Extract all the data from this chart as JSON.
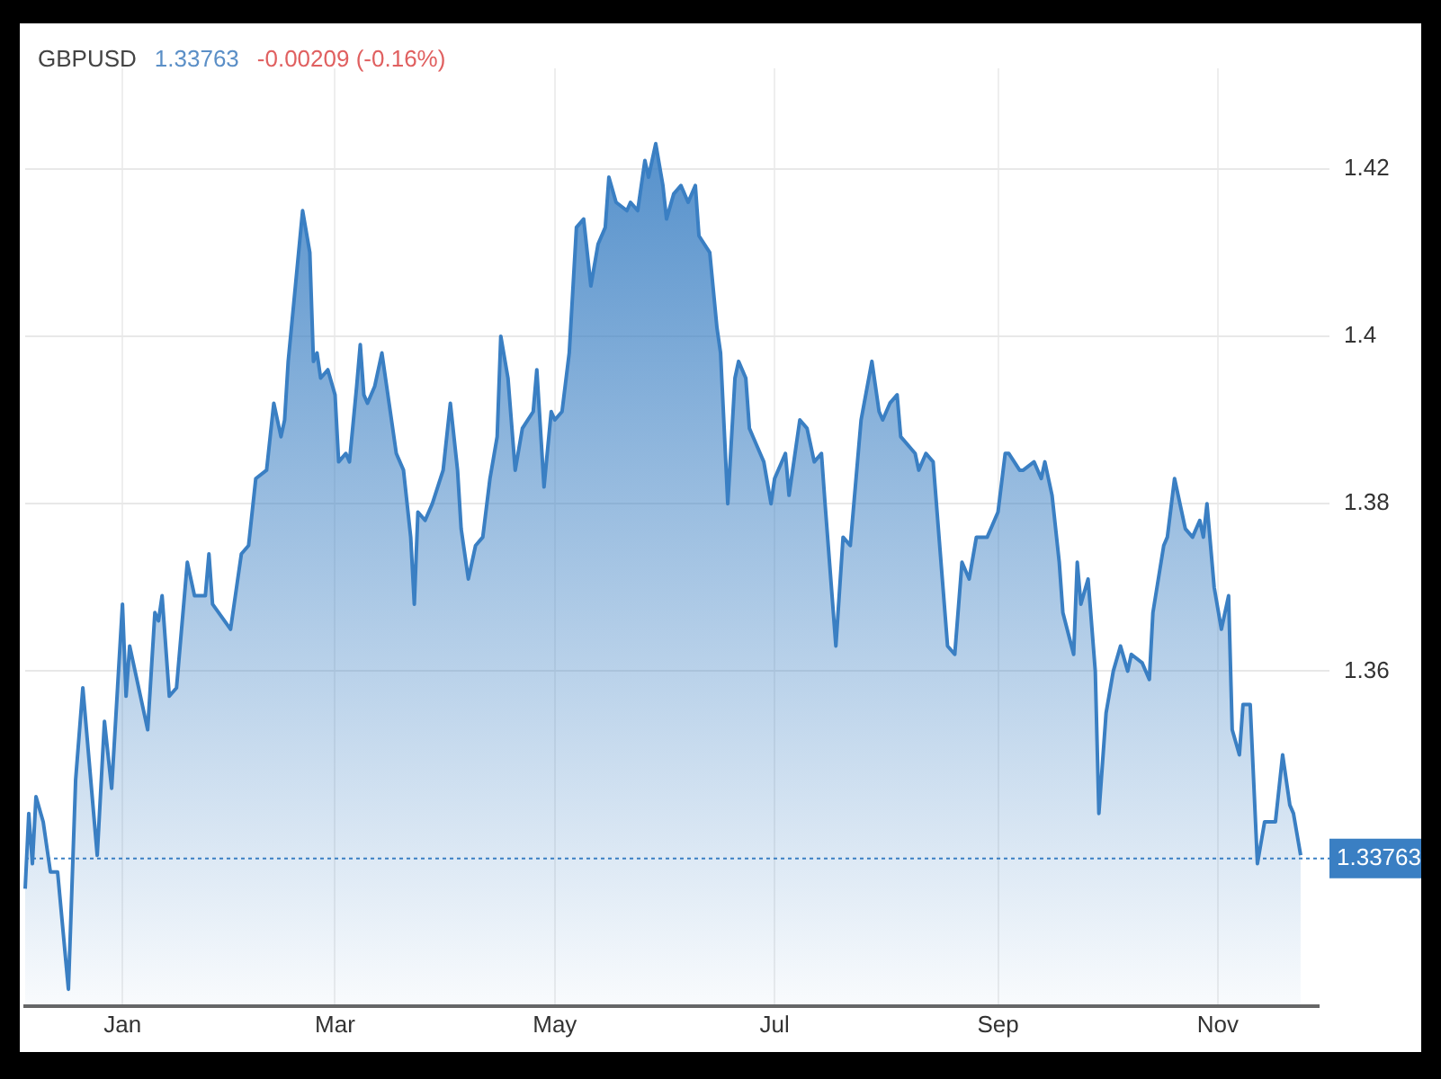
{
  "chart_data": {
    "type": "area",
    "title": "GBPUSD",
    "subtitle": "1.33763",
    "annotations": [
      "-0.00209 (-0.16%)"
    ],
    "categories": [
      null,
      null,
      null,
      null,
      null,
      null,
      null,
      null,
      null,
      null,
      null,
      null,
      null,
      null,
      null,
      null,
      null,
      null,
      null,
      null,
      null,
      null,
      null,
      null,
      null,
      null,
      null,
      "Jan",
      null,
      null,
      null,
      null,
      null,
      null,
      null,
      null,
      null,
      null,
      null,
      null,
      null,
      null,
      null,
      null,
      null,
      null,
      null,
      null,
      null,
      null,
      null,
      null,
      null,
      null,
      null,
      null,
      null,
      null,
      null,
      null,
      null,
      null,
      null,
      null,
      null,
      null,
      null,
      null,
      null,
      null,
      null,
      null,
      null,
      null,
      null,
      null,
      null,
      null,
      null,
      null,
      null,
      null,
      null,
      null,
      null,
      null,
      "Mar",
      null,
      null,
      null,
      null,
      null,
      null,
      null,
      null,
      null,
      null,
      null,
      null,
      null,
      null,
      null,
      null,
      null,
      null,
      null,
      null,
      null,
      null,
      null,
      null,
      null,
      null,
      null,
      null,
      null,
      null,
      null,
      null,
      null,
      null,
      null,
      null,
      null,
      null,
      null,
      null,
      null,
      null,
      null,
      null,
      null,
      null,
      null,
      null,
      null,
      null,
      null,
      null,
      null,
      null,
      null,
      null,
      null,
      null,
      null,
      null,
      "May",
      null,
      null,
      null,
      null,
      null,
      null,
      null,
      null,
      null,
      null,
      null,
      null,
      null,
      null,
      null,
      null,
      null,
      null,
      null,
      null,
      null,
      null,
      null,
      null,
      null,
      null,
      null,
      null,
      null,
      null,
      null,
      null,
      null,
      null,
      null,
      null,
      null,
      null,
      null,
      null,
      null,
      null,
      null,
      null,
      null,
      null,
      null,
      null,
      null,
      null,
      null,
      null,
      null,
      null,
      null,
      null,
      null,
      null,
      null,
      null,
      "Jul",
      null,
      null,
      null,
      null,
      null,
      null,
      null,
      null,
      null,
      null,
      null,
      null,
      null,
      null,
      null,
      null,
      null,
      null,
      null,
      null,
      null,
      null,
      null,
      null,
      null,
      null,
      null,
      null,
      null,
      null,
      null,
      null,
      null,
      null,
      null,
      null,
      null,
      null,
      null,
      null,
      null,
      null,
      null,
      null,
      null,
      null,
      null,
      null,
      null,
      null,
      null,
      null,
      null,
      null,
      null,
      null,
      null,
      null,
      null,
      null,
      null,
      "Sep",
      null,
      null,
      null,
      null,
      null,
      null,
      null,
      null,
      null,
      null,
      null,
      null,
      null,
      null,
      null,
      null,
      null,
      null,
      null,
      null,
      null,
      null,
      null,
      null,
      null,
      null,
      null,
      null,
      null,
      null,
      null,
      null,
      null,
      null,
      null,
      null,
      null,
      null,
      null,
      null,
      null,
      null,
      null,
      null,
      null,
      null,
      null,
      null,
      null,
      null,
      null,
      null,
      null,
      null,
      null,
      null,
      null,
      null,
      null,
      null,
      "Nov",
      null,
      null,
      null,
      null,
      null,
      null,
      null,
      null,
      null,
      null,
      null,
      null,
      null,
      null,
      null,
      null,
      null,
      null,
      null,
      null,
      null,
      null,
      null,
      null,
      null,
      null,
      null,
      null
    ],
    "series": [
      {
        "color": "#3a7fc3",
        "values": [
          1.334,
          1.343,
          1.337,
          1.345,
          null,
          1.342,
          null,
          1.336,
          null,
          1.336,
          null,
          null,
          1.322,
          null,
          1.347,
          null,
          1.358,
          null,
          null,
          null,
          1.338,
          null,
          1.354,
          null,
          1.346,
          null,
          null,
          1.368,
          1.357,
          1.363,
          null,
          null,
          1.357,
          null,
          1.353,
          null,
          1.367,
          1.366,
          1.369,
          null,
          1.357,
          null,
          1.358,
          null,
          null,
          1.373,
          null,
          1.369,
          null,
          null,
          1.369,
          1.374,
          1.368,
          null,
          null,
          null,
          null,
          1.365,
          null,
          null,
          1.374,
          null,
          1.375,
          null,
          1.383,
          null,
          null,
          1.384,
          null,
          1.392,
          null,
          1.388,
          1.39,
          1.397,
          null,
          1.406,
          null,
          1.415,
          null,
          1.41,
          1.397,
          1.398,
          1.395,
          null,
          1.396,
          null,
          1.393,
          1.385,
          null,
          1.386,
          1.385,
          null,
          1.394,
          1.399,
          1.393,
          1.392,
          null,
          1.394,
          null,
          1.398,
          null,
          1.392,
          null,
          1.386,
          null,
          1.384,
          null,
          1.376,
          1.368,
          1.379,
          null,
          1.378,
          null,
          1.38,
          null,
          null,
          1.384,
          null,
          1.392,
          null,
          1.384,
          1.377,
          null,
          1.371,
          null,
          1.375,
          null,
          1.376,
          null,
          1.383,
          null,
          1.388,
          1.4,
          null,
          1.395,
          null,
          1.384,
          null,
          1.389,
          null,
          null,
          1.391,
          1.396,
          null,
          1.382,
          null,
          1.391,
          1.39,
          null,
          1.391,
          null,
          1.398,
          null,
          1.413,
          null,
          1.414,
          null,
          1.406,
          null,
          1.411,
          null,
          1.413,
          1.419,
          null,
          1.416,
          null,
          null,
          1.415,
          1.416,
          null,
          1.415,
          null,
          1.421,
          1.419,
          null,
          1.423,
          null,
          1.418,
          1.414,
          null,
          1.417,
          null,
          1.418,
          null,
          1.416,
          null,
          1.418,
          1.412,
          null,
          null,
          1.41,
          null,
          1.401,
          1.398,
          null,
          1.38,
          null,
          1.395,
          1.397,
          null,
          1.395,
          1.389,
          1.388,
          null,
          null,
          1.385,
          null,
          1.38,
          1.383,
          null,
          null,
          1.386,
          1.381,
          null,
          null,
          1.39,
          null,
          1.389,
          null,
          1.385,
          null,
          1.386,
          1.38,
          null,
          null,
          1.363,
          null,
          1.376,
          null,
          1.375,
          null,
          null,
          1.39,
          null,
          null,
          1.397,
          null,
          1.391,
          1.39,
          null,
          1.392,
          null,
          1.393,
          1.388,
          null,
          null,
          null,
          1.386,
          1.384,
          null,
          1.386,
          null,
          1.385,
          null,
          null,
          null,
          1.363,
          null,
          1.362,
          null,
          1.373,
          null,
          1.371,
          null,
          1.376,
          null,
          null,
          1.376,
          null,
          null,
          1.379,
          null,
          1.386,
          1.386,
          null,
          null,
          1.384,
          1.384,
          null,
          null,
          1.385,
          null,
          1.383,
          1.385,
          null,
          1.381,
          null,
          1.373,
          1.367,
          null,
          null,
          1.362,
          1.373,
          1.368,
          null,
          1.371,
          null,
          1.36,
          1.343,
          null,
          1.355,
          null,
          1.36,
          null,
          1.363,
          null,
          1.36,
          1.362,
          null,
          null,
          1.361,
          null,
          1.359,
          1.367,
          null,
          null,
          1.375,
          1.376,
          null,
          1.383,
          null,
          null,
          1.377,
          null,
          1.376,
          null,
          1.378,
          1.376,
          1.38,
          null,
          1.37,
          null,
          1.365,
          null,
          1.369,
          1.353,
          null,
          1.35,
          1.356,
          null,
          1.356,
          null,
          1.337,
          null,
          1.342,
          null,
          null,
          1.342,
          null,
          1.35,
          null,
          1.344,
          1.343,
          null,
          1.338,
          null,
          null,
          null,
          null,
          null
        ]
      }
    ],
    "ylim": [
      1.32,
      1.432
    ],
    "yticks": [
      1.36,
      1.38,
      1.4,
      1.42
    ],
    "ref_lines": [
      {
        "axis": "y",
        "value": 1.33763,
        "label": "1.33763",
        "color": "#3a7fc3",
        "line_style": "dotted"
      }
    ],
    "grid": true,
    "legend": false,
    "marker": "none",
    "line_style": "solid"
  }
}
